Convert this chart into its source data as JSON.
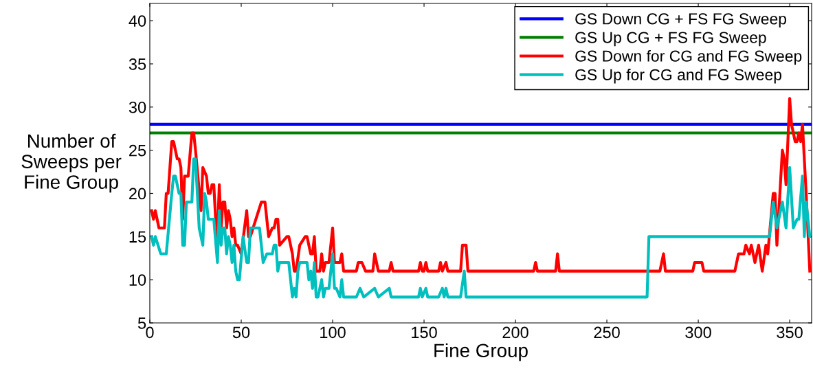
{
  "chart_data": {
    "type": "line",
    "xlabel": "Fine Group",
    "ylabel": "Number of\nSweeps per\nFine Group",
    "xlim": [
      0,
      362
    ],
    "ylim": [
      5,
      42
    ],
    "xticks": [
      0,
      50,
      100,
      150,
      200,
      250,
      300,
      350
    ],
    "yticks": [
      5,
      10,
      15,
      20,
      25,
      30,
      35,
      40
    ],
    "grid": false,
    "legend": "top right",
    "marker": "none",
    "line_style": "solid",
    "series": [
      {
        "name": "GS Down CG + FS FG Sweep",
        "color": "#0000ff",
        "x": [
          0,
          362
        ],
        "values": [
          28,
          28
        ]
      },
      {
        "name": "GS Up CG + FS FG Sweep",
        "color": "#008000",
        "x": [
          0,
          362
        ],
        "values": [
          27,
          27
        ]
      },
      {
        "name": "GS Down for CG and FG Sweep",
        "color": "#ff0000",
        "x": [
          1,
          2,
          3,
          4,
          5,
          8,
          9,
          10,
          12,
          13,
          15,
          16,
          17,
          18,
          19,
          21,
          23,
          24,
          25,
          28,
          29,
          31,
          32,
          33,
          34,
          35,
          36,
          37,
          38,
          39,
          40,
          41,
          42,
          43,
          44,
          45,
          46,
          47,
          48,
          50,
          53,
          54,
          55,
          61,
          63,
          65,
          67,
          68,
          69,
          70,
          71,
          75,
          76,
          78,
          79,
          80,
          82,
          85,
          86,
          88,
          89,
          90,
          91,
          93,
          94,
          95,
          96,
          98,
          100,
          101,
          104,
          105,
          106,
          113,
          114,
          116,
          118,
          122,
          123,
          125,
          131,
          132,
          133,
          147,
          148,
          149,
          150,
          151,
          152,
          158,
          159,
          160,
          162,
          163,
          170,
          171,
          173,
          174,
          210,
          211,
          212,
          222,
          223,
          224,
          279,
          281,
          282,
          297,
          298,
          302,
          303,
          320,
          322,
          325,
          326,
          328,
          329,
          331,
          333,
          335,
          337,
          338,
          341,
          342,
          343,
          346,
          347,
          348,
          350,
          351,
          352,
          353,
          354,
          355,
          356,
          357,
          359,
          361
        ],
        "values": [
          18,
          17,
          18,
          17,
          16,
          16,
          20,
          20,
          26,
          26,
          24,
          24,
          23,
          17,
          22,
          22,
          27,
          27,
          25,
          18,
          23,
          22,
          20,
          20,
          21,
          21,
          17,
          15,
          21,
          16,
          19,
          19,
          16,
          18,
          17,
          15,
          16,
          14,
          14,
          13,
          18,
          15,
          15,
          19,
          19,
          15,
          16,
          16,
          17,
          17,
          14,
          15,
          15,
          13,
          11,
          11,
          14,
          15,
          15,
          13,
          13,
          15,
          11,
          11,
          13,
          11,
          12,
          12,
          16,
          12,
          12,
          13,
          11,
          11,
          12,
          12,
          11,
          11,
          13,
          11,
          11,
          12,
          11,
          11,
          12,
          11,
          11,
          12,
          11,
          11,
          12,
          11,
          12,
          11,
          11,
          14,
          14,
          11,
          11,
          12,
          11,
          11,
          13,
          11,
          11,
          13,
          11,
          11,
          12,
          12,
          11,
          11,
          13,
          13,
          14,
          13,
          14,
          12,
          14,
          11,
          14,
          13,
          20,
          20,
          14,
          25,
          24,
          21,
          31,
          28,
          27,
          26,
          26,
          27,
          26,
          28,
          20,
          11
        ]
      },
      {
        "name": "GS Up for CG and FG Sweep",
        "color": "#00bfbf",
        "x": [
          1,
          2,
          3,
          6,
          9,
          12,
          13,
          14,
          16,
          17,
          18,
          19,
          20,
          23,
          24,
          25,
          27,
          29,
          30,
          31,
          32,
          35,
          37,
          38,
          39,
          40,
          41,
          42,
          43,
          44,
          45,
          46,
          47,
          48,
          49,
          51,
          53,
          54,
          55,
          60,
          62,
          64,
          67,
          68,
          69,
          70,
          71,
          76,
          77,
          78,
          79,
          80,
          81,
          82,
          86,
          87,
          88,
          89,
          90,
          91,
          92,
          94,
          95,
          96,
          98,
          100,
          101,
          102,
          104,
          105,
          106,
          113,
          115,
          117,
          123,
          125,
          131,
          132,
          147,
          148,
          149,
          151,
          152,
          158,
          160,
          161,
          162,
          163,
          170,
          172,
          173,
          272,
          273,
          339,
          341,
          343,
          346,
          348,
          350,
          352,
          354,
          355,
          357,
          358,
          359,
          361
        ],
        "values": [
          15,
          14,
          15,
          13,
          13,
          20,
          22,
          22,
          20,
          20,
          14,
          14,
          19,
          19,
          24,
          24,
          16,
          14,
          20,
          19,
          17,
          17,
          12,
          18,
          14,
          16,
          16,
          13,
          15,
          14,
          12,
          14,
          11,
          10,
          10,
          15,
          12,
          12,
          16,
          16,
          12,
          13,
          13,
          14,
          14,
          11,
          12,
          12,
          10,
          8,
          9,
          8,
          11,
          12,
          12,
          10,
          11,
          9,
          12,
          8,
          8,
          10,
          8,
          9,
          9,
          13,
          9,
          9,
          8,
          10,
          8,
          8,
          9,
          8,
          9,
          8,
          9,
          8,
          8,
          9,
          8,
          9,
          8,
          8,
          9,
          8,
          9,
          8,
          8,
          11,
          8,
          8,
          15,
          15,
          19,
          16,
          19,
          16,
          23,
          16,
          17,
          17,
          22,
          15,
          19,
          15
        ]
      }
    ]
  }
}
